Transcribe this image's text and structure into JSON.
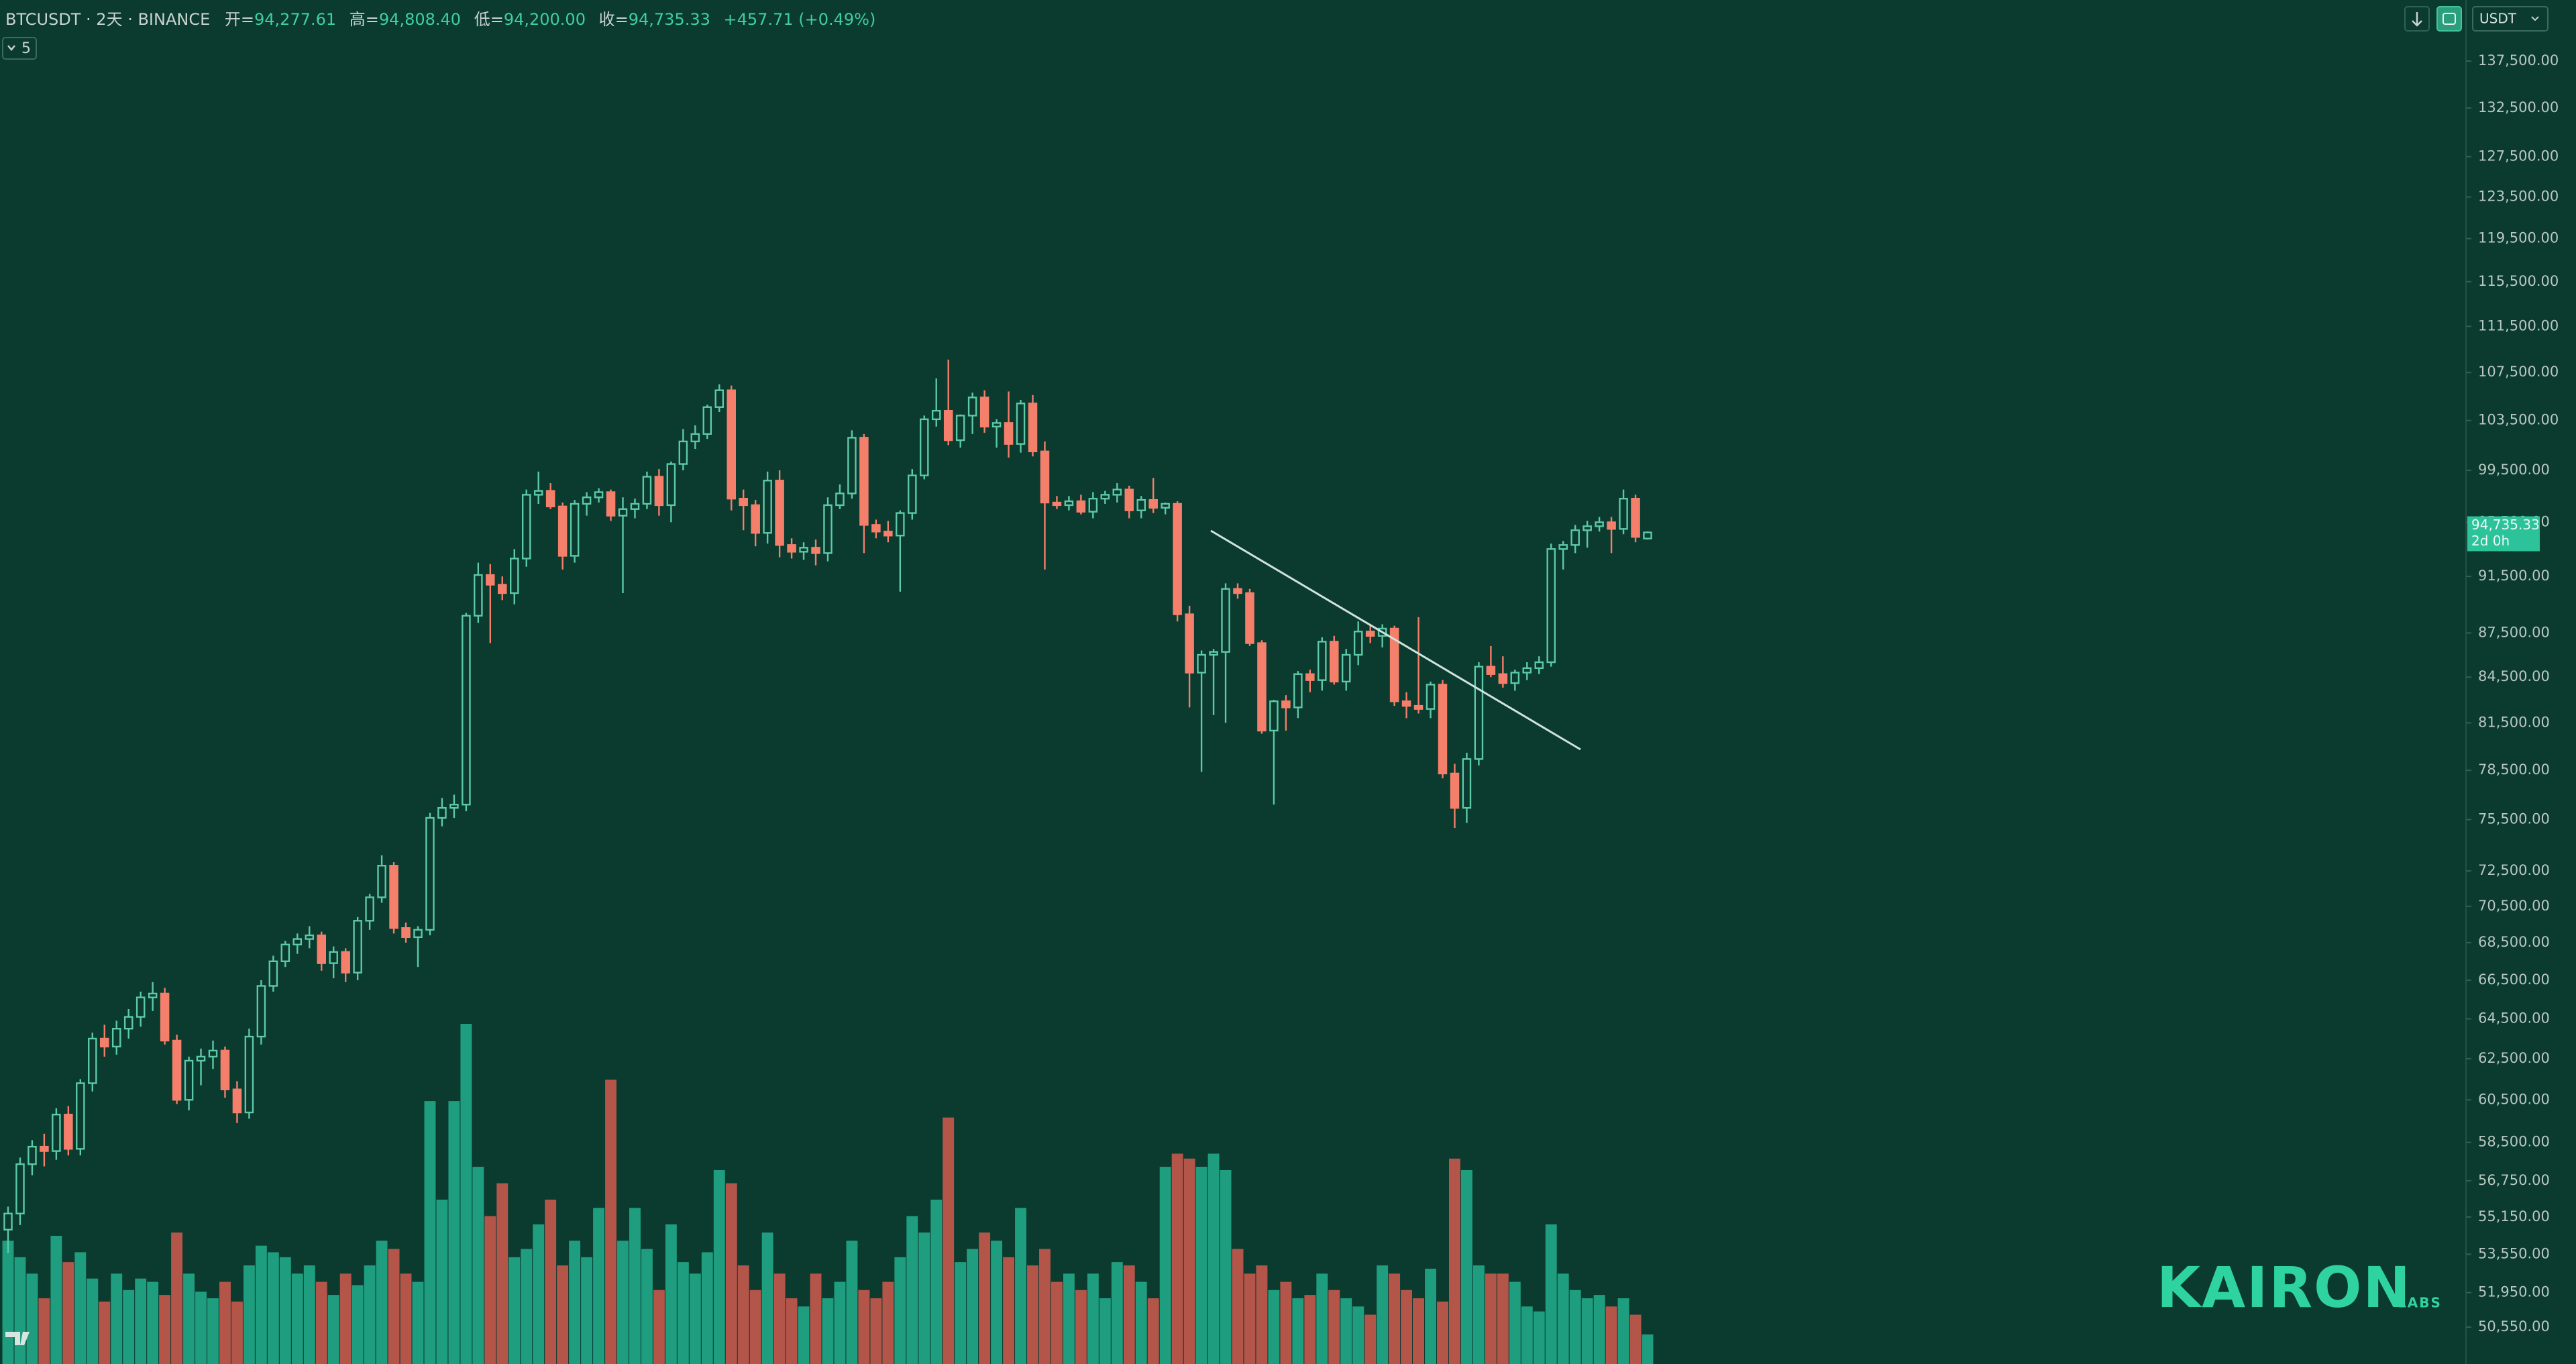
{
  "legend": {
    "symbol": "BTCUSDT · 2天 · BINANCE",
    "ohlc": [
      {
        "label": "开=",
        "value": "94,277.61"
      },
      {
        "label": "高=",
        "value": "94,808.40"
      },
      {
        "label": "低=",
        "value": "94,200.00"
      },
      {
        "label": "收=",
        "value": "94,735.33"
      }
    ],
    "change": "+457.71 (+0.49%)",
    "indicators": "5"
  },
  "toolbar": {
    "currency": "USDT"
  },
  "logo": {
    "name": "KAIRON",
    "sub": "LABS"
  },
  "chart_data": {
    "type": "candlestick",
    "log_scale": true,
    "grid": false,
    "up_color": "#5cc9a7",
    "down_color": "#f47f6b",
    "volume_up_color": "#1f9e7f",
    "volume_down_color": "#b4554a",
    "ylim": [
      49100,
      144300
    ],
    "yticks": [
      {
        "value": 137500,
        "label": "137,500.00"
      },
      {
        "value": 132500,
        "label": "132,500.00"
      },
      {
        "value": 127500,
        "label": "127,500.00"
      },
      {
        "value": 123500,
        "label": "123,500.00"
      },
      {
        "value": 119500,
        "label": "119,500.00"
      },
      {
        "value": 115500,
        "label": "115,500.00"
      },
      {
        "value": 111500,
        "label": "111,500.00"
      },
      {
        "value": 107500,
        "label": "107,500.00"
      },
      {
        "value": 103500,
        "label": "103,500.00"
      },
      {
        "value": 99500,
        "label": "99,500.00"
      },
      {
        "value": 95500,
        "label": "95,500.00"
      },
      {
        "value": 91500,
        "label": "91,500.00"
      },
      {
        "value": 87500,
        "label": "87,500.00"
      },
      {
        "value": 84500,
        "label": "84,500.00"
      },
      {
        "value": 81500,
        "label": "81,500.00"
      },
      {
        "value": 78500,
        "label": "78,500.00"
      },
      {
        "value": 75500,
        "label": "75,500.00"
      },
      {
        "value": 72500,
        "label": "72,500.00"
      },
      {
        "value": 70500,
        "label": "70,500.00"
      },
      {
        "value": 68500,
        "label": "68,500.00"
      },
      {
        "value": 66500,
        "label": "66,500.00"
      },
      {
        "value": 64500,
        "label": "64,500.00"
      },
      {
        "value": 62500,
        "label": "62,500.00"
      },
      {
        "value": 60500,
        "label": "60,500.00"
      },
      {
        "value": 58500,
        "label": "58,500.00"
      },
      {
        "value": 56750,
        "label": "56,750.00"
      },
      {
        "value": 55150,
        "label": "55,150.00"
      },
      {
        "value": 53550,
        "label": "53,550.00"
      },
      {
        "value": 51950,
        "label": "51,950.00"
      },
      {
        "value": 50550,
        "label": "50,550.00"
      }
    ],
    "last_price_label": "94,735.33",
    "countdown": "2d 0h",
    "candles": [
      [
        54600,
        55600,
        53600,
        55300
      ],
      [
        55300,
        57800,
        54800,
        57500
      ],
      [
        57500,
        58600,
        57000,
        58300
      ],
      [
        58300,
        58900,
        57400,
        58100
      ],
      [
        58100,
        60100,
        57700,
        59800
      ],
      [
        59800,
        60200,
        57900,
        58200
      ],
      [
        58200,
        61500,
        57900,
        61300
      ],
      [
        61300,
        63800,
        60900,
        63500
      ],
      [
        63500,
        64200,
        62600,
        63100
      ],
      [
        63100,
        64400,
        62700,
        64000
      ],
      [
        64000,
        65000,
        63500,
        64600
      ],
      [
        64600,
        65900,
        64100,
        65600
      ],
      [
        65600,
        66400,
        64900,
        65800
      ],
      [
        65800,
        66100,
        63200,
        63400
      ],
      [
        63400,
        63700,
        60300,
        60500
      ],
      [
        60500,
        62600,
        60000,
        62400
      ],
      [
        62400,
        63000,
        61200,
        62600
      ],
      [
        62600,
        63400,
        62000,
        62900
      ],
      [
        62900,
        63100,
        60600,
        61000
      ],
      [
        61000,
        61400,
        59400,
        59900
      ],
      [
        59900,
        64000,
        59600,
        63600
      ],
      [
        63600,
        66500,
        63200,
        66200
      ],
      [
        66200,
        67800,
        65900,
        67500
      ],
      [
        67500,
        68600,
        67200,
        68400
      ],
      [
        68400,
        69000,
        67900,
        68700
      ],
      [
        68700,
        69400,
        68200,
        68900
      ],
      [
        68900,
        69100,
        67000,
        67400
      ],
      [
        67400,
        68300,
        66600,
        68000
      ],
      [
        68000,
        68200,
        66400,
        66900
      ],
      [
        66900,
        69900,
        66500,
        69700
      ],
      [
        69700,
        71200,
        69200,
        71000
      ],
      [
        71000,
        73400,
        70700,
        72800
      ],
      [
        72800,
        73000,
        69000,
        69300
      ],
      [
        69300,
        69600,
        68500,
        68800
      ],
      [
        68800,
        69400,
        67200,
        69200
      ],
      [
        69200,
        75900,
        68900,
        75600
      ],
      [
        75600,
        76800,
        75100,
        76200
      ],
      [
        76200,
        77000,
        75600,
        76400
      ],
      [
        76400,
        88900,
        76000,
        88700
      ],
      [
        88700,
        92500,
        88200,
        91600
      ],
      [
        91600,
        92400,
        86800,
        90900
      ],
      [
        90900,
        91500,
        89800,
        90300
      ],
      [
        90300,
        93500,
        89500,
        92800
      ],
      [
        92800,
        98000,
        92200,
        97600
      ],
      [
        97600,
        99400,
        96900,
        97900
      ],
      [
        97900,
        98500,
        96500,
        96700
      ],
      [
        96700,
        97000,
        92000,
        93000
      ],
      [
        93000,
        97200,
        92500,
        96900
      ],
      [
        96900,
        97800,
        96000,
        97400
      ],
      [
        97400,
        98100,
        97000,
        97800
      ],
      [
        97800,
        98000,
        95600,
        96000
      ],
      [
        96000,
        97400,
        90300,
        96500
      ],
      [
        96500,
        97300,
        95800,
        96900
      ],
      [
        96900,
        99400,
        96500,
        99000
      ],
      [
        99000,
        99600,
        96000,
        96800
      ],
      [
        96800,
        100200,
        95500,
        100000
      ],
      [
        100000,
        102800,
        99500,
        101800
      ],
      [
        101800,
        103100,
        101200,
        102400
      ],
      [
        102400,
        104800,
        102000,
        104600
      ],
      [
        104600,
        106500,
        104200,
        106000
      ],
      [
        106000,
        106400,
        96400,
        97300
      ],
      [
        97300,
        98000,
        94900,
        96800
      ],
      [
        96800,
        97200,
        93700,
        94700
      ],
      [
        94700,
        99400,
        93900,
        98700
      ],
      [
        98700,
        99500,
        92900,
        93800
      ],
      [
        93800,
        94300,
        92800,
        93300
      ],
      [
        93300,
        94000,
        92700,
        93600
      ],
      [
        93600,
        94200,
        92300,
        93200
      ],
      [
        93200,
        97400,
        92600,
        96800
      ],
      [
        96800,
        98400,
        96500,
        97700
      ],
      [
        97700,
        102700,
        97300,
        102100
      ],
      [
        102100,
        102400,
        93200,
        95300
      ],
      [
        95300,
        95700,
        94300,
        94800
      ],
      [
        94800,
        95600,
        94000,
        94500
      ],
      [
        94500,
        96400,
        90400,
        96200
      ],
      [
        96200,
        99600,
        95700,
        99100
      ],
      [
        99100,
        103900,
        98800,
        103600
      ],
      [
        103600,
        107000,
        103000,
        104300
      ],
      [
        104300,
        108600,
        101500,
        101900
      ],
      [
        101900,
        104000,
        101300,
        103900
      ],
      [
        103900,
        105800,
        102400,
        105400
      ],
      [
        105400,
        106000,
        102500,
        103000
      ],
      [
        103000,
        103600,
        101300,
        103300
      ],
      [
        103300,
        105900,
        100500,
        101600
      ],
      [
        101600,
        105200,
        100900,
        104900
      ],
      [
        104900,
        105600,
        100600,
        101000
      ],
      [
        101000,
        101800,
        92000,
        97000
      ],
      [
        97000,
        97500,
        96500,
        96800
      ],
      [
        96800,
        97500,
        96400,
        97100
      ],
      [
        97100,
        97600,
        96100,
        96300
      ],
      [
        96300,
        97800,
        95800,
        97300
      ],
      [
        97300,
        97900,
        96900,
        97600
      ],
      [
        97600,
        98500,
        97000,
        98000
      ],
      [
        98000,
        98300,
        95800,
        96400
      ],
      [
        96400,
        97500,
        95800,
        97200
      ],
      [
        97200,
        98900,
        96200,
        96600
      ],
      [
        96600,
        97000,
        96100,
        96900
      ],
      [
        96900,
        97100,
        88300,
        88800
      ],
      [
        88800,
        89400,
        82500,
        84800
      ],
      [
        84800,
        86300,
        78400,
        86000
      ],
      [
        86000,
        86400,
        82000,
        86200
      ],
      [
        86200,
        91000,
        81500,
        90600
      ],
      [
        90600,
        91000,
        89900,
        90300
      ],
      [
        90300,
        90600,
        86600,
        86800
      ],
      [
        86800,
        87000,
        80800,
        81000
      ],
      [
        81000,
        83000,
        76400,
        82900
      ],
      [
        82900,
        83300,
        81000,
        82500
      ],
      [
        82500,
        84900,
        81800,
        84700
      ],
      [
        84700,
        85000,
        83500,
        84300
      ],
      [
        84300,
        87200,
        83600,
        86900
      ],
      [
        86900,
        87300,
        84000,
        84200
      ],
      [
        84200,
        86400,
        83600,
        86000
      ],
      [
        86000,
        88300,
        85300,
        87600
      ],
      [
        87600,
        88000,
        86800,
        87300
      ],
      [
        87300,
        88100,
        86500,
        87800
      ],
      [
        87800,
        88000,
        82600,
        82900
      ],
      [
        82900,
        83500,
        81800,
        82600
      ],
      [
        82600,
        88600,
        82100,
        82400
      ],
      [
        82400,
        84200,
        81800,
        84000
      ],
      [
        84000,
        84300,
        78000,
        78300
      ],
      [
        78300,
        78900,
        75000,
        76200
      ],
      [
        76200,
        79600,
        75300,
        79200
      ],
      [
        79200,
        85500,
        78800,
        85200
      ],
      [
        85200,
        86600,
        84500,
        84700
      ],
      [
        84700,
        85900,
        83800,
        84100
      ],
      [
        84100,
        85000,
        83600,
        84800
      ],
      [
        84800,
        85500,
        84300,
        85100
      ],
      [
        85100,
        85900,
        84700,
        85500
      ],
      [
        85500,
        93900,
        85200,
        93500
      ],
      [
        93500,
        94100,
        92000,
        93800
      ],
      [
        93800,
        95300,
        93200,
        94900
      ],
      [
        94900,
        95600,
        93600,
        95200
      ],
      [
        95200,
        95900,
        94800,
        95500
      ],
      [
        95500,
        95900,
        93200,
        95000
      ],
      [
        95000,
        98000,
        94600,
        97300
      ],
      [
        97300,
        97600,
        94000,
        94400
      ],
      [
        94277.61,
        94808.4,
        94200,
        94735.33
      ]
    ],
    "volume": [
      75,
      65,
      55,
      40,
      78,
      62,
      68,
      52,
      38,
      55,
      45,
      52,
      50,
      42,
      80,
      55,
      44,
      40,
      50,
      38,
      60,
      72,
      68,
      65,
      55,
      60,
      50,
      42,
      55,
      48,
      60,
      75,
      70,
      55,
      50,
      160,
      100,
      160,
      207,
      120,
      90,
      110,
      65,
      70,
      85,
      100,
      60,
      75,
      65,
      95,
      173,
      75,
      95,
      70,
      45,
      85,
      62,
      55,
      68,
      118,
      110,
      60,
      45,
      80,
      55,
      40,
      35,
      55,
      40,
      50,
      75,
      45,
      40,
      50,
      65,
      90,
      80,
      100,
      150,
      62,
      70,
      80,
      75,
      65,
      95,
      60,
      70,
      50,
      55,
      45,
      55,
      40,
      62,
      60,
      50,
      40,
      120,
      128,
      125,
      120,
      128,
      118,
      70,
      55,
      60,
      45,
      50,
      40,
      42,
      55,
      45,
      40,
      35,
      30,
      60,
      55,
      45,
      40,
      58,
      38,
      125,
      118,
      60,
      55,
      55,
      50,
      35,
      32,
      85,
      55,
      45,
      40,
      42,
      35,
      40,
      30,
      18
    ]
  }
}
